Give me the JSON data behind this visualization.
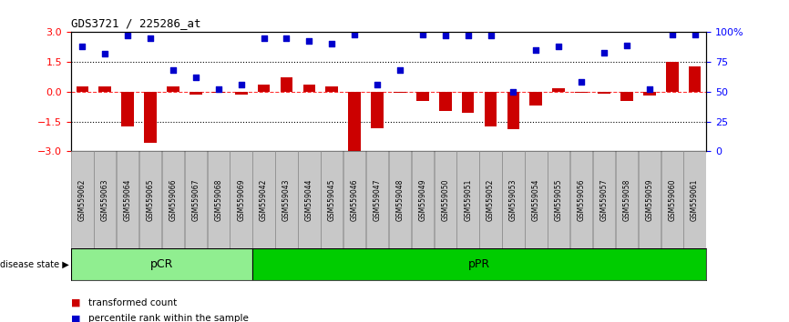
{
  "title": "GDS3721 / 225286_at",
  "samples": [
    "GSM559062",
    "GSM559063",
    "GSM559064",
    "GSM559065",
    "GSM559066",
    "GSM559067",
    "GSM559068",
    "GSM559069",
    "GSM559042",
    "GSM559043",
    "GSM559044",
    "GSM559045",
    "GSM559046",
    "GSM559047",
    "GSM559048",
    "GSM559049",
    "GSM559050",
    "GSM559051",
    "GSM559052",
    "GSM559053",
    "GSM559054",
    "GSM559055",
    "GSM559056",
    "GSM559057",
    "GSM559058",
    "GSM559059",
    "GSM559060",
    "GSM559061"
  ],
  "transformed_count": [
    0.28,
    0.28,
    -1.75,
    -2.55,
    0.28,
    -0.15,
    -0.05,
    -0.12,
    0.38,
    0.72,
    0.38,
    0.28,
    -3.0,
    -1.85,
    -0.05,
    -0.45,
    -0.95,
    -1.05,
    -1.75,
    -1.9,
    -0.68,
    0.18,
    -0.05,
    -0.08,
    -0.45,
    -0.18,
    1.5,
    1.3
  ],
  "percentile_rank_pct": [
    88,
    82,
    97,
    95,
    68,
    62,
    52,
    56,
    95,
    95,
    93,
    90,
    98,
    56,
    68,
    98,
    97,
    97,
    97,
    50,
    85,
    88,
    58,
    83,
    89,
    52,
    98,
    98
  ],
  "pCR_count": 8,
  "pPR_count": 20,
  "bar_color": "#CC0000",
  "scatter_color": "#0000CC",
  "ylim": [
    -3,
    3
  ],
  "yticks_left": [
    -3,
    -1.5,
    0,
    1.5,
    3
  ],
  "yticks_right": [
    0,
    25,
    50,
    75,
    100
  ],
  "hline_dashed": [
    -1.5,
    1.5
  ],
  "pCR_color": "#90EE90",
  "pPR_color": "#00CC00",
  "disease_state_label": "disease state",
  "legend_bar_label": "transformed count",
  "legend_scatter_label": "percentile rank within the sample",
  "tick_label_bg": "#C8C8C8"
}
